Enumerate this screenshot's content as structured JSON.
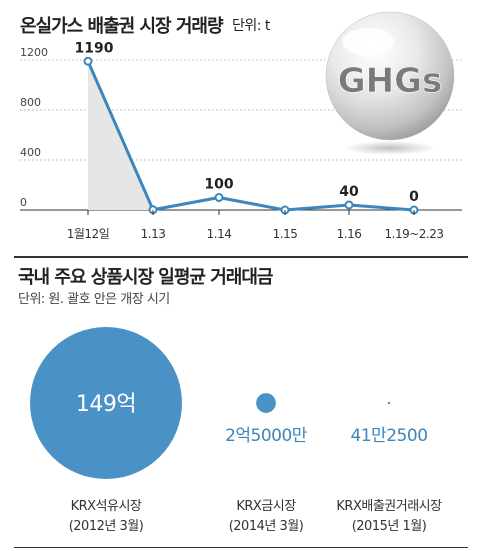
{
  "chart_data": [
    {
      "type": "line",
      "title": "온실가스 배출권 시장 거래량",
      "unit": "단위: t",
      "categories": [
        "1월12일",
        "1.13",
        "1.14",
        "1.15",
        "1.16",
        "1.19~2.23"
      ],
      "values": [
        1190,
        2,
        100,
        0,
        40,
        0
      ],
      "data_labels": [
        "1190",
        "",
        "100",
        "",
        "40",
        "0"
      ],
      "yticks": [
        0,
        400,
        800,
        1200
      ],
      "ylim": [
        0,
        1200
      ],
      "grid": true,
      "badge": "GHGs",
      "colors": {
        "line": "#3b86bd",
        "shade": "#e6e6e6"
      }
    },
    {
      "type": "bubble",
      "title": "국내 주요 상품시장 일평균 거래대금",
      "subtitle": "단위: 원. 괄호 안은 개장 시기",
      "markets": [
        {
          "name": "KRX석유시장",
          "period": "(2012년 3월)",
          "value_label": "149억",
          "value": 14900000000
        },
        {
          "name": "KRX금시장",
          "period": "(2014년 3월)",
          "value_label": "2억5000만",
          "value": 250000000
        },
        {
          "name": "KRX배출권거래시장",
          "period": "(2015년 1월)",
          "value_label": "41만2500",
          "value": 412500
        }
      ],
      "colors": {
        "bubble": "#4a91c6",
        "label": "#3b86bd"
      }
    }
  ]
}
